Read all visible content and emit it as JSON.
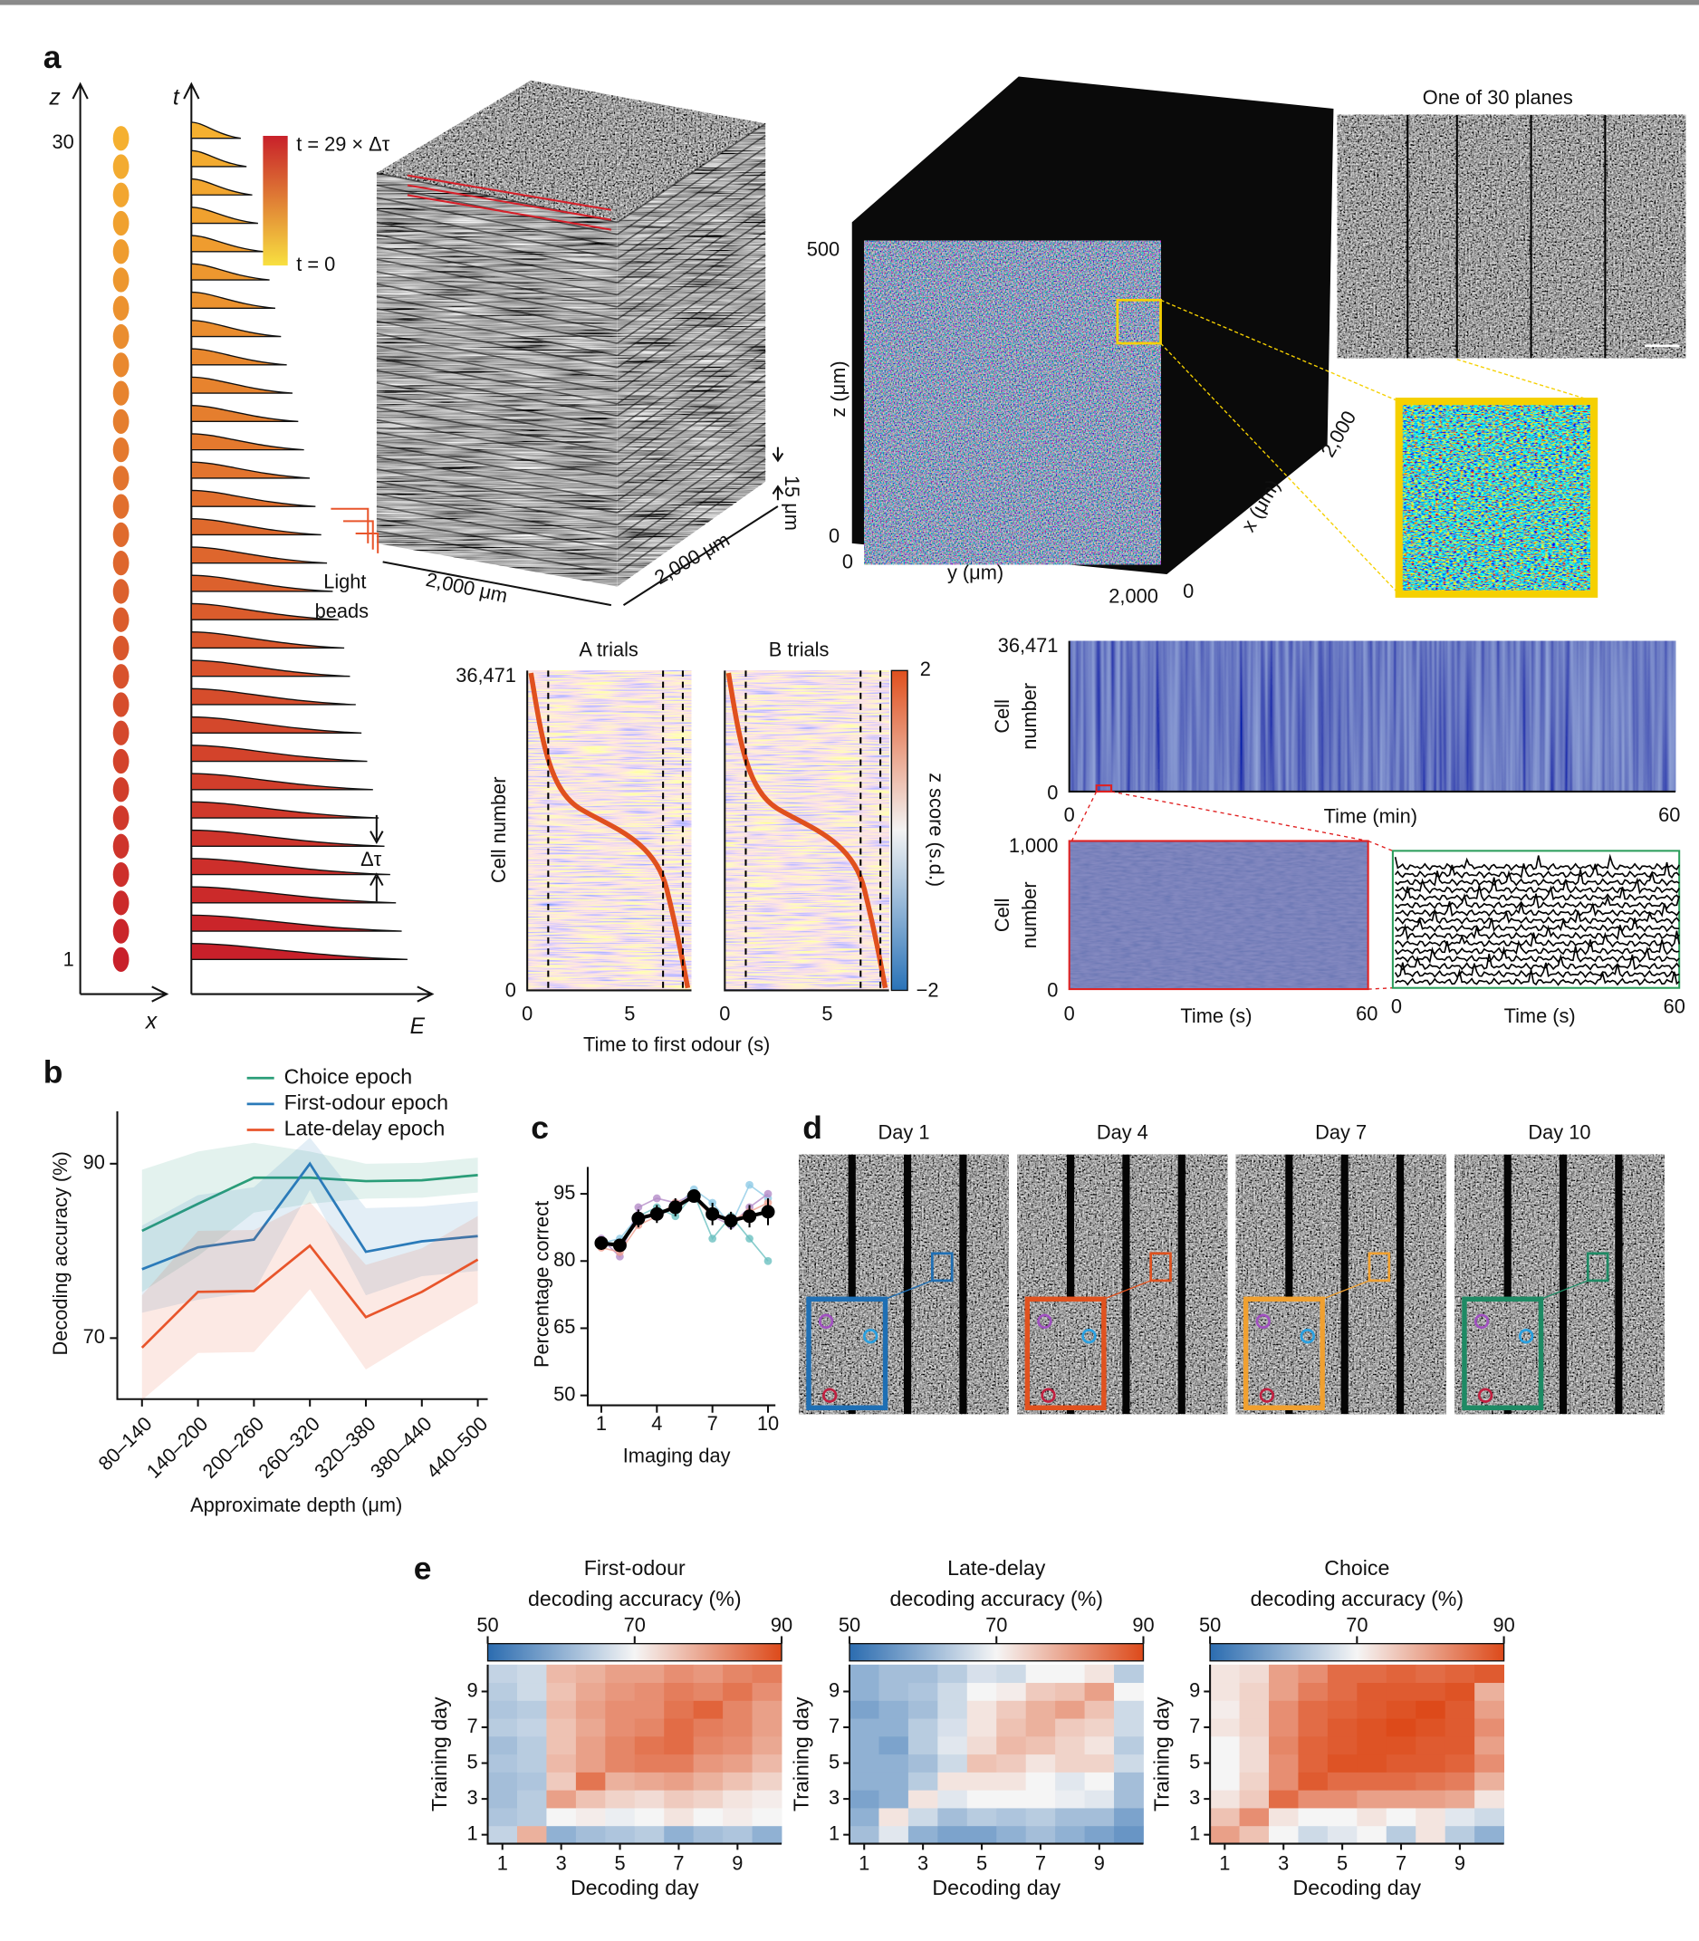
{
  "panel_labels": [
    "a",
    "b",
    "c",
    "d",
    "e"
  ],
  "panel_a": {
    "texts": [
      "z",
      "30",
      "1",
      "x",
      "t",
      "E",
      "t = 29 × Δτ",
      "t = 0",
      "Δτ",
      "15 μm",
      "2,000 μm",
      "2,000 μm",
      "Light",
      "beads",
      "500",
      "0",
      "z (μm)",
      "0",
      "y (μm)",
      "2,000",
      "0",
      "x (μm)",
      "2,000",
      "One of 30 planes",
      "A trials",
      "B trials",
      "36,471",
      "0",
      "Cell number",
      "0",
      "5",
      "0",
      "5",
      "Time to first odour (s)",
      "2",
      "−2",
      "z score (s.d.)",
      "36,471",
      "0",
      "Cell",
      "number",
      "0",
      "Time (min)",
      "60",
      "1,000",
      "0",
      "Cell",
      "number",
      "0",
      "Time (s)",
      "60",
      "0",
      "Time (s)",
      "60"
    ]
  },
  "panel_d": {
    "days": [
      "Day 1",
      "Day 4",
      "Day 7",
      "Day 10"
    ]
  },
  "chart_data": [
    {
      "type": "line",
      "ylabel": "Decoding accuracy (%)",
      "xlabel": "Approximate depth (μm)",
      "categories": [
        "80–140",
        "140–200",
        "200–260",
        "260–320",
        "320–380",
        "380–440",
        "440–500"
      ],
      "ylim": [
        63,
        96
      ],
      "yticks": [
        70,
        90
      ],
      "series": [
        {
          "name": "Choice epoch",
          "color": "#2a9d78",
          "values": [
            82.3,
            85.4,
            88.4,
            88.4,
            88,
            88.1,
            88.7
          ],
          "errors": [
            7,
            6,
            4,
            3,
            2,
            2,
            2
          ]
        },
        {
          "name": "First-odour epoch",
          "color": "#2a7ab9",
          "values": [
            77.9,
            80.4,
            81.3,
            90,
            79.9,
            81.1,
            81.7
          ],
          "errors": [
            5,
            6,
            6,
            3,
            5,
            4,
            4
          ]
        },
        {
          "name": "Late-delay epoch",
          "color": "#e8552b",
          "values": [
            68.9,
            75.3,
            75.4,
            80.6,
            72.4,
            75.3,
            79
          ],
          "errors": [
            6,
            7,
            7,
            5,
            6,
            5,
            5
          ]
        }
      ]
    },
    {
      "type": "line",
      "ylabel": "Percentage correct",
      "xlabel": "Imaging day",
      "x": [
        1,
        2,
        3,
        4,
        5,
        6,
        7,
        8,
        9,
        10
      ],
      "xlim": [
        0.4,
        10.4
      ],
      "xticks": [
        1,
        4,
        7,
        10
      ],
      "ylim": [
        50,
        101
      ],
      "yticks": [
        50,
        65,
        80,
        95
      ],
      "series": [
        {
          "color": "#8ecae6",
          "values": [
            84,
            85,
            90,
            90,
            92,
            96,
            93,
            88,
            97,
            94
          ]
        },
        {
          "color": "#b48cc8",
          "values": [
            85,
            81,
            92,
            94,
            93,
            95,
            90,
            88,
            92,
            95
          ]
        },
        {
          "color": "#f0a090",
          "values": [
            83,
            82,
            88,
            90,
            93,
            94,
            90,
            89,
            91,
            93
          ]
        },
        {
          "color": "#6cc0c0",
          "values": [
            84,
            84,
            90,
            92,
            90,
            95,
            85,
            90,
            85,
            80
          ]
        },
        {
          "color": "#000000",
          "values": [
            84,
            83.5,
            89.5,
            90.5,
            92,
            94.5,
            90.5,
            89,
            90,
            91
          ],
          "errors": [
            1.5,
            1,
            2,
            2,
            2,
            1,
            2.5,
            2,
            2.5,
            3
          ]
        }
      ]
    },
    {
      "type": "heatmap",
      "title": [
        "First-odour",
        "decoding accuracy (%)"
      ],
      "xlabel": "Decoding day",
      "ylabel": "Training day",
      "x": [
        1,
        2,
        3,
        4,
        5,
        6,
        7,
        8,
        9,
        10
      ],
      "y": [
        1,
        2,
        3,
        4,
        5,
        6,
        7,
        8,
        9,
        10
      ],
      "xticks": [
        1,
        3,
        5,
        7,
        9
      ],
      "yticks": [
        1,
        3,
        5,
        7,
        9
      ],
      "clim": [
        50,
        90
      ],
      "cticks": [
        50,
        70,
        90
      ],
      "colors": [
        "#2b6cb0",
        "#f5f5f5",
        "#dd4a1a"
      ],
      "values": [
        [
          65,
          78,
          60,
          62,
          63,
          64,
          60,
          62,
          63,
          60
        ],
        [
          63,
          64,
          70,
          71,
          69,
          70,
          72,
          70,
          71,
          70
        ],
        [
          62,
          64,
          80,
          76,
          74,
          73,
          75,
          74,
          72,
          71
        ],
        [
          62,
          63,
          75,
          85,
          78,
          79,
          80,
          78,
          76,
          74
        ],
        [
          63,
          64,
          77,
          80,
          83,
          84,
          84,
          81,
          80,
          77
        ],
        [
          62,
          64,
          76,
          80,
          83,
          85,
          86,
          83,
          82,
          79
        ],
        [
          64,
          65,
          76,
          79,
          82,
          83,
          86,
          84,
          83,
          80
        ],
        [
          63,
          64,
          77,
          80,
          82,
          82,
          85,
          87,
          83,
          80
        ],
        [
          64,
          66,
          76,
          79,
          81,
          82,
          84,
          83,
          85,
          82
        ],
        [
          65,
          66,
          77,
          78,
          80,
          80,
          82,
          81,
          83,
          84
        ]
      ]
    },
    {
      "type": "heatmap",
      "title": [
        "Late-delay",
        "decoding accuracy (%)"
      ],
      "xlabel": "Decoding day",
      "ylabel": "Training day",
      "x": [
        1,
        2,
        3,
        4,
        5,
        6,
        7,
        8,
        9,
        10
      ],
      "y": [
        1,
        2,
        3,
        4,
        5,
        6,
        7,
        8,
        9,
        10
      ],
      "xticks": [
        1,
        3,
        5,
        7,
        9
      ],
      "yticks": [
        1,
        3,
        5,
        7,
        9
      ],
      "clim": [
        50,
        90
      ],
      "cticks": [
        50,
        70,
        90
      ],
      "colors": [
        "#2b6cb0",
        "#f5f5f5",
        "#dd4a1a"
      ],
      "values": [
        [
          62,
          68,
          60,
          58,
          58,
          60,
          62,
          60,
          58,
          56
        ],
        [
          60,
          72,
          66,
          62,
          64,
          63,
          64,
          62,
          62,
          58
        ],
        [
          58,
          60,
          72,
          68,
          70,
          70,
          70,
          69,
          68,
          62
        ],
        [
          60,
          60,
          64,
          72,
          72,
          72,
          70,
          68,
          70,
          62
        ],
        [
          60,
          60,
          62,
          66,
          76,
          75,
          72,
          74,
          74,
          66
        ],
        [
          60,
          58,
          64,
          68,
          73,
          77,
          76,
          74,
          72,
          64
        ],
        [
          60,
          60,
          64,
          67,
          72,
          76,
          78,
          75,
          74,
          66
        ],
        [
          58,
          60,
          62,
          66,
          72,
          75,
          78,
          80,
          76,
          66
        ],
        [
          60,
          62,
          63,
          66,
          70,
          71,
          75,
          76,
          80,
          70
        ],
        [
          60,
          62,
          62,
          64,
          67,
          66,
          70,
          70,
          72,
          64
        ]
      ]
    },
    {
      "type": "heatmap",
      "title": [
        "Choice",
        "decoding accuracy (%)"
      ],
      "xlabel": "Decoding day",
      "ylabel": "Training day",
      "x": [
        1,
        2,
        3,
        4,
        5,
        6,
        7,
        8,
        9,
        10
      ],
      "y": [
        1,
        2,
        3,
        4,
        5,
        6,
        7,
        8,
        9,
        10
      ],
      "xticks": [
        1,
        3,
        5,
        7,
        9
      ],
      "yticks": [
        1,
        3,
        5,
        7,
        9
      ],
      "clim": [
        50,
        90
      ],
      "cticks": [
        50,
        70,
        90
      ],
      "colors": [
        "#2b6cb0",
        "#f5f5f5",
        "#dd4a1a"
      ],
      "values": [
        [
          80,
          76,
          70,
          66,
          68,
          70,
          64,
          72,
          64,
          60
        ],
        [
          76,
          82,
          72,
          70,
          70,
          72,
          70,
          72,
          68,
          66
        ],
        [
          72,
          75,
          86,
          82,
          82,
          80,
          80,
          80,
          79,
          72
        ],
        [
          70,
          74,
          82,
          88,
          86,
          86,
          86,
          85,
          84,
          78
        ],
        [
          70,
          73,
          82,
          87,
          89,
          89,
          88,
          88,
          87,
          82
        ],
        [
          70,
          73,
          83,
          87,
          88,
          89,
          89,
          88,
          88,
          80
        ],
        [
          72,
          74,
          82,
          86,
          88,
          89,
          90,
          89,
          88,
          82
        ],
        [
          71,
          74,
          82,
          86,
          87,
          88,
          89,
          90,
          88,
          80
        ],
        [
          72,
          74,
          80,
          84,
          86,
          88,
          88,
          88,
          89,
          78
        ],
        [
          72,
          73,
          80,
          82,
          86,
          86,
          87,
          86,
          87,
          88
        ]
      ]
    }
  ]
}
